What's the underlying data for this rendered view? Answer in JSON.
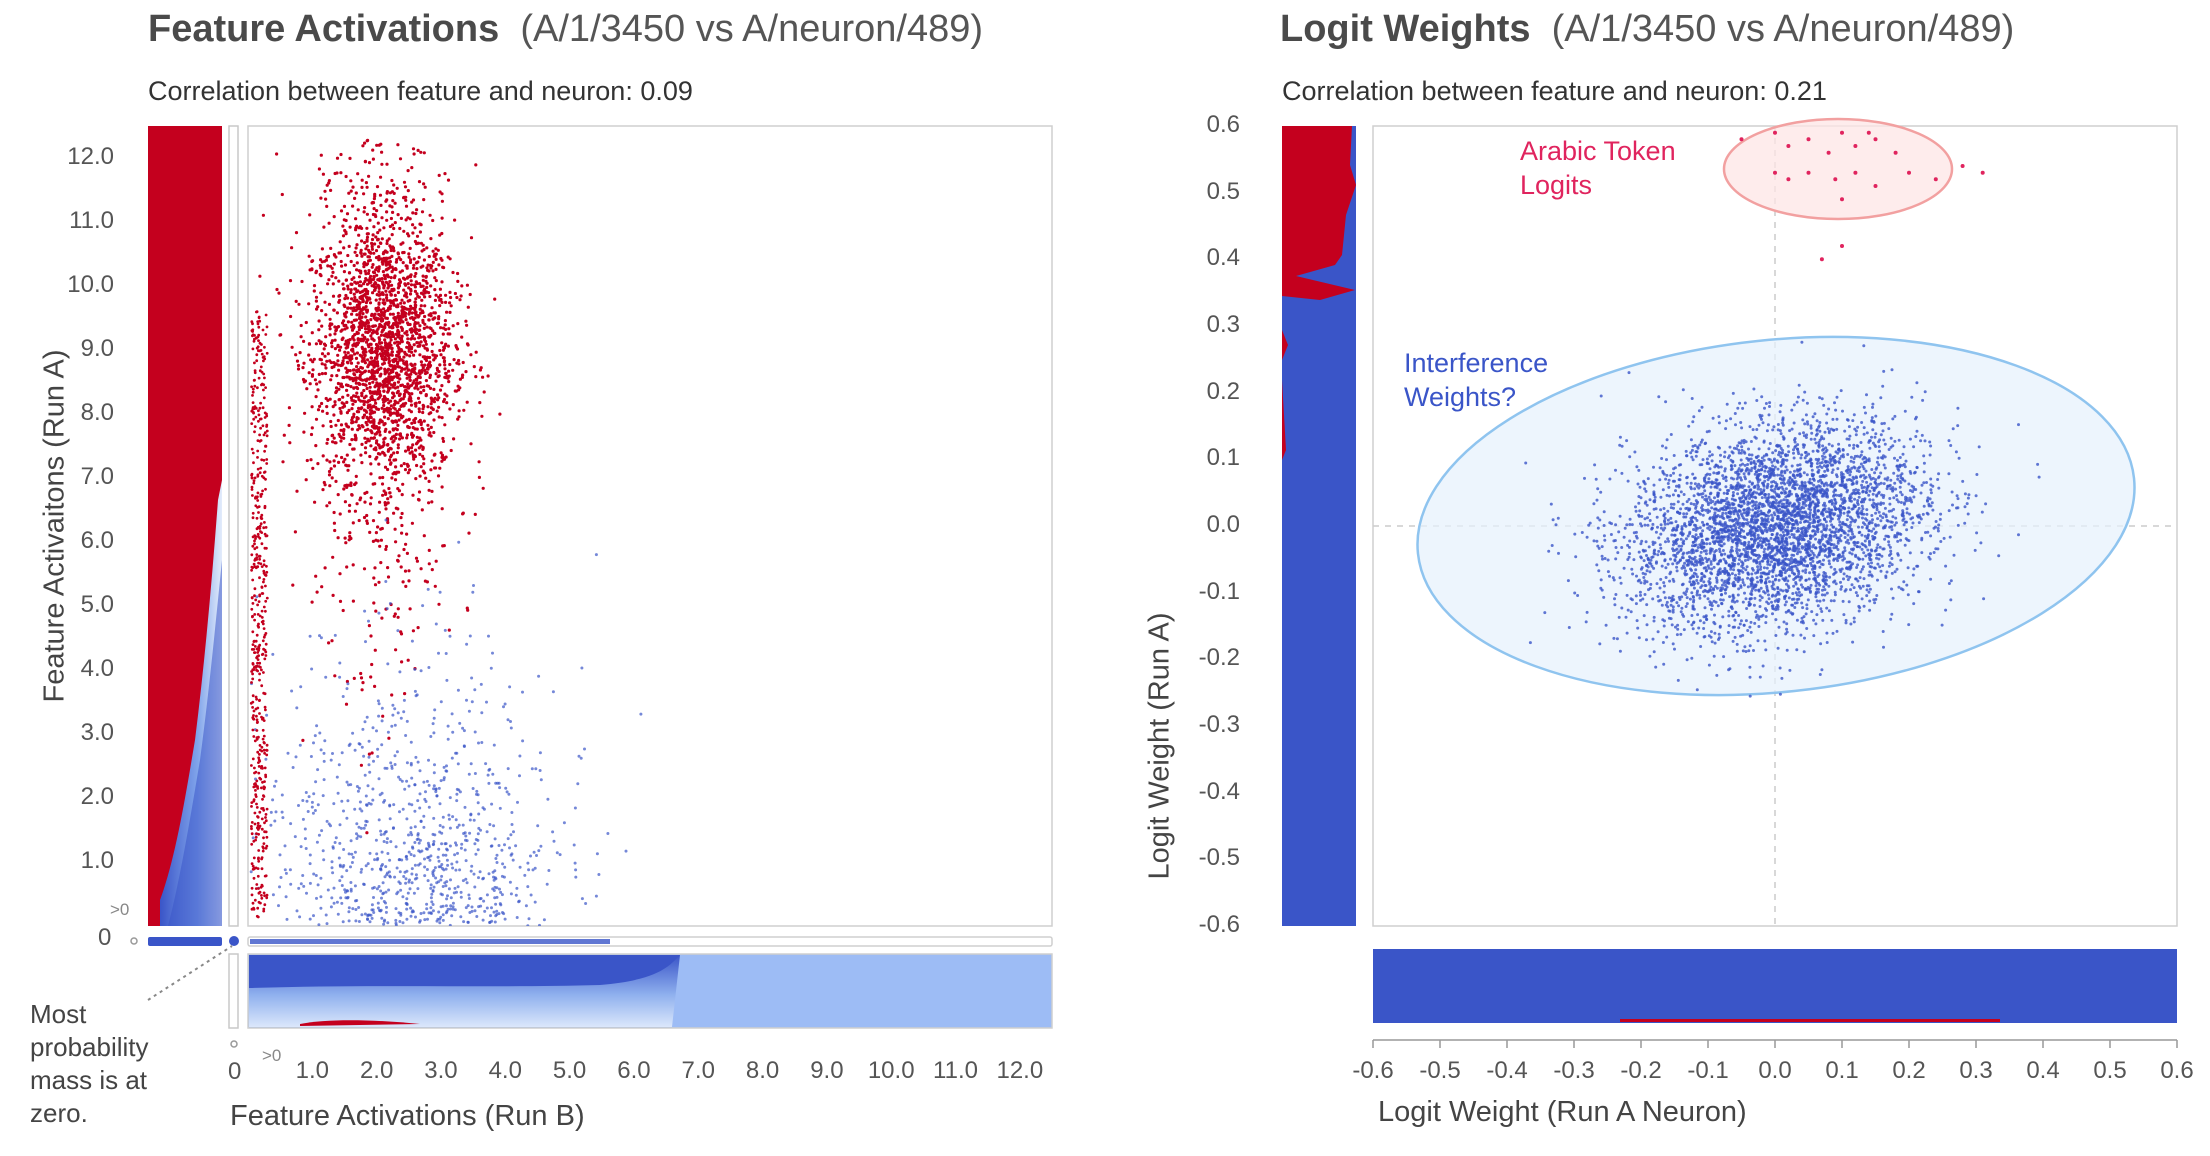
{
  "chart_data": [
    {
      "type": "scatter",
      "title": "Feature Activations",
      "subtitle_ids": "(A/1/3450 vs A/neuron/489)",
      "correlation_text": "Correlation between feature and neuron: 0.09",
      "xlabel": "Feature Activations (Run B)",
      "ylabel": "Feature Activaitons (Run A)",
      "xlim": [
        0,
        12.5
      ],
      "ylim": [
        0,
        12.5
      ],
      "x_ticks": [
        "1.0",
        "2.0",
        "3.0",
        "4.0",
        "5.0",
        "6.0",
        "7.0",
        "8.0",
        "9.0",
        "10.0",
        "11.0",
        "12.0"
      ],
      "y_ticks": [
        "12.0",
        "11.0",
        "10.0",
        "9.0",
        "8.0",
        "7.0",
        "6.0",
        "5.0",
        "4.0",
        "3.0",
        "2.0",
        "1.0"
      ],
      "zero_label": "0",
      "gt_zero_label": ">0",
      "annotation": "Most probability mass is at zero.",
      "annotation_lines": [
        "Most",
        "probability",
        "mass is at",
        "zero."
      ],
      "series": [
        {
          "color": "#c4001e",
          "cluster": {
            "x_mean": 2.1,
            "y_mean": 9.0,
            "x_sd": 0.55,
            "y_sd": 1.0
          }
        },
        {
          "color": "#3a55c8",
          "cluster": {
            "x_mean": 2.6,
            "y_mean": 1.2,
            "x_sd": 1.1,
            "y_sd": 1.2
          }
        }
      ],
      "grid": false
    },
    {
      "type": "scatter",
      "title": "Logit Weights",
      "subtitle_ids": "(A/1/3450 vs A/neuron/489)",
      "correlation_text": "Correlation between feature and neuron: 0.21",
      "xlabel": "Logit Weight (Run A Neuron)",
      "ylabel": "Logit Weight (Run A)",
      "xlim": [
        -0.6,
        0.6
      ],
      "ylim": [
        -0.6,
        0.6
      ],
      "x_ticks": [
        "-0.6",
        "-0.5",
        "-0.4",
        "-0.3",
        "-0.2",
        "-0.1",
        "0.0",
        "0.1",
        "0.2",
        "0.3",
        "0.4",
        "0.5",
        "0.6"
      ],
      "y_ticks": [
        "0.6",
        "0.5",
        "0.4",
        "0.3",
        "0.2",
        "0.1",
        "0.0",
        "-0.1",
        "-0.2",
        "-0.3",
        "-0.4",
        "-0.5",
        "-0.6"
      ],
      "annotations": [
        {
          "text": "Arabic Token Logits",
          "lines": [
            "Arabic Token",
            "Logits"
          ],
          "color": "#e0245e"
        },
        {
          "text": "Interference Weights?",
          "lines": [
            "Interference",
            "Weights?"
          ],
          "color": "#3a55c8"
        }
      ],
      "series": [
        {
          "color": "#3a55c8",
          "cluster": {
            "x_mean": 0.0,
            "y_mean": 0.0,
            "x_sd": 0.11,
            "y_sd": 0.075
          }
        },
        {
          "color": "#e0245e",
          "points": [
            [
              -0.05,
              0.58
            ],
            [
              0.0,
              0.59
            ],
            [
              0.02,
              0.57
            ],
            [
              0.05,
              0.58
            ],
            [
              0.08,
              0.56
            ],
            [
              0.1,
              0.59
            ],
            [
              0.12,
              0.57
            ],
            [
              0.14,
              0.59
            ],
            [
              0.15,
              0.58
            ],
            [
              0.18,
              0.56
            ],
            [
              0.0,
              0.53
            ],
            [
              0.02,
              0.52
            ],
            [
              0.05,
              0.53
            ],
            [
              0.09,
              0.52
            ],
            [
              0.12,
              0.53
            ],
            [
              0.15,
              0.51
            ],
            [
              0.2,
              0.53
            ],
            [
              0.24,
              0.52
            ],
            [
              0.28,
              0.54
            ],
            [
              0.31,
              0.53
            ],
            [
              0.1,
              0.49
            ],
            [
              0.07,
              0.4
            ],
            [
              0.1,
              0.42
            ]
          ]
        }
      ],
      "grid": false
    }
  ],
  "colors": {
    "red": "#c4001e",
    "blue": "#3a55c8",
    "light_blue": "#9dbcf5",
    "ellipse_blue": "#8fc4ef",
    "ellipse_pink": "#f2a0a0"
  }
}
